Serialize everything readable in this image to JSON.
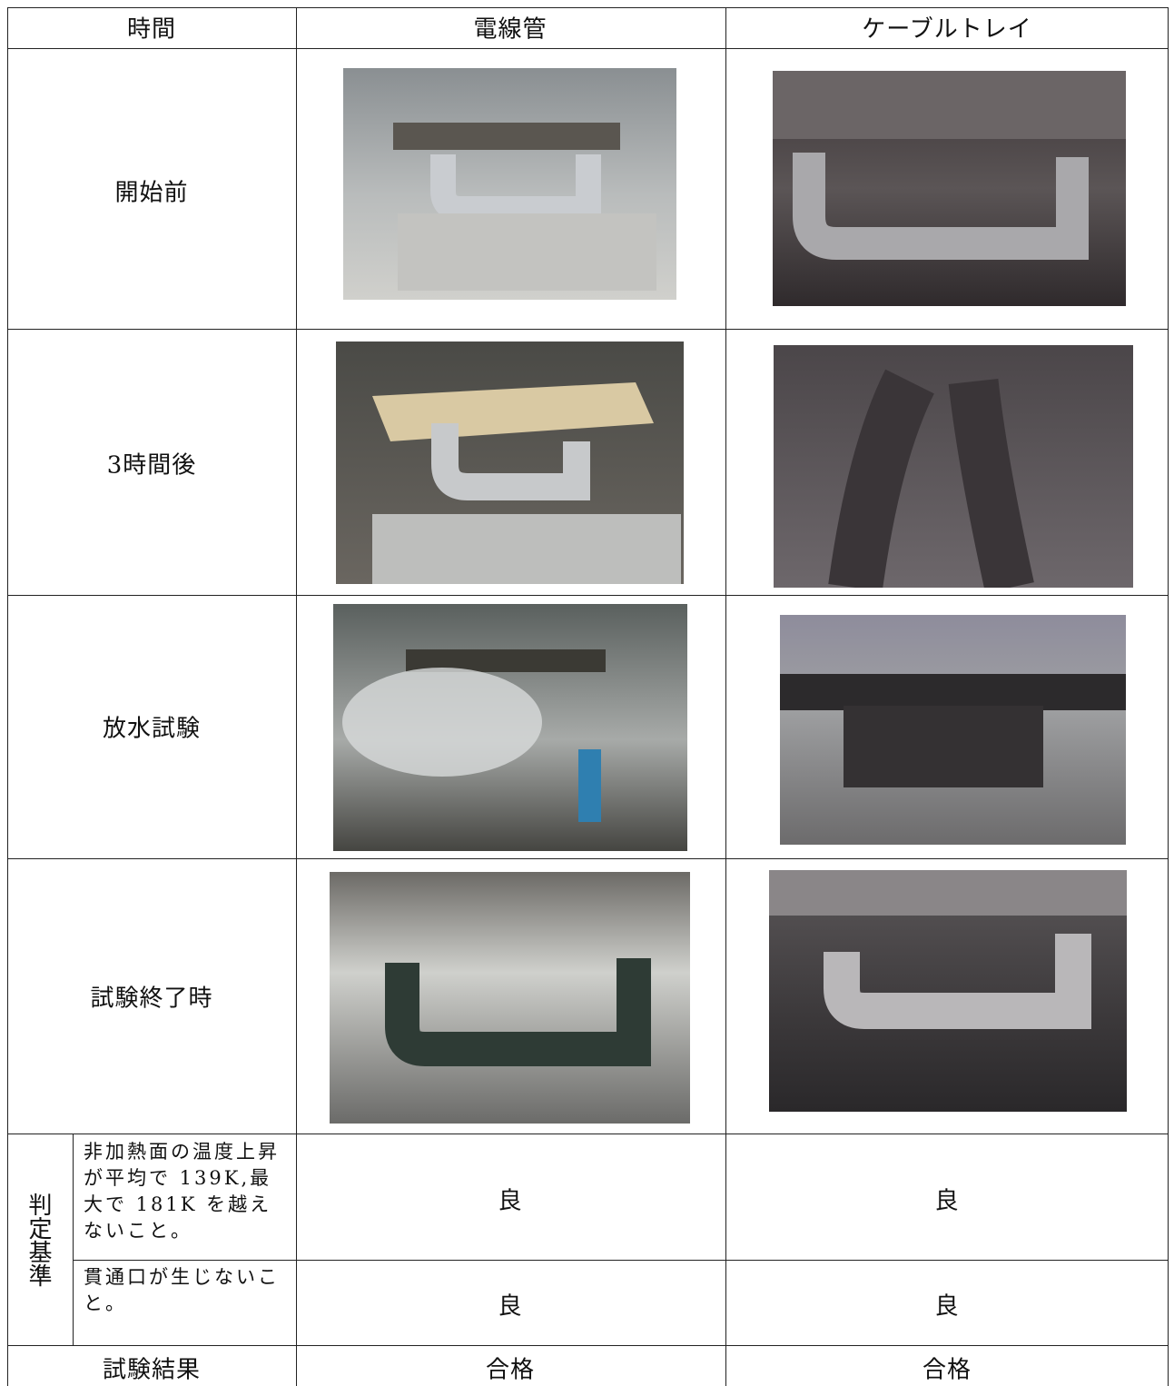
{
  "table": {
    "header": [
      "時間",
      "電線管",
      "ケーブルトレイ"
    ],
    "photo_rows": [
      {
        "label": "開始前"
      },
      {
        "label": "3時間後"
      },
      {
        "label": "放水試験"
      },
      {
        "label": "試験終了時"
      }
    ],
    "criteria": {
      "label": "判定基準",
      "rows": [
        {
          "text": "非加熱面の温度上昇が平均で 139K,最大で 181K を越えないこと。",
          "results": [
            "良",
            "良"
          ]
        },
        {
          "text": "貫通口が生じないこと。",
          "results": [
            "良",
            "良"
          ]
        }
      ]
    },
    "result": {
      "label": "試験結果",
      "values": [
        "合格",
        "合格"
      ]
    }
  }
}
